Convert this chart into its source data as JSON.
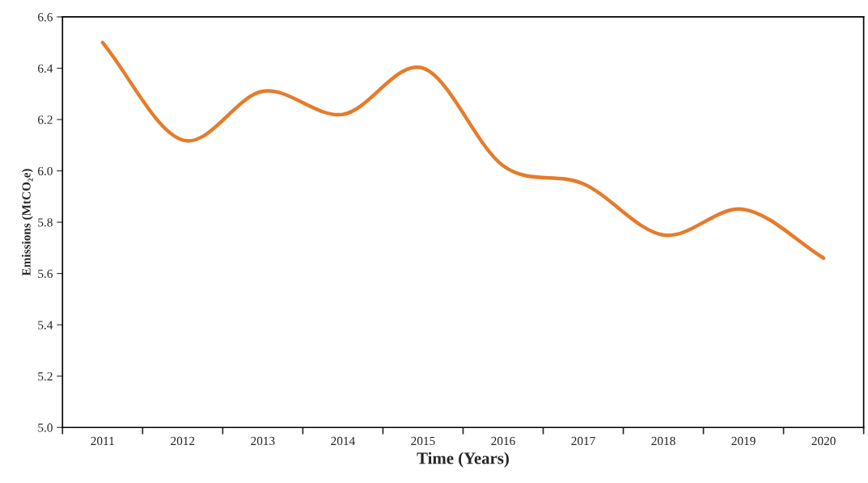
{
  "chart_data": {
    "type": "line",
    "xlabel": "Time (Years)",
    "ylabel": "Emissions (MtCO₂e)",
    "categories": [
      "2011",
      "2012",
      "2013",
      "2014",
      "2015",
      "2016",
      "2017",
      "2018",
      "2019",
      "2020"
    ],
    "series": [
      {
        "color": "#e57c2c",
        "values": [
          6.5,
          6.12,
          6.31,
          6.22,
          6.4,
          6.02,
          5.95,
          5.75,
          5.85,
          5.66
        ]
      }
    ],
    "ylim": [
      5.0,
      6.6
    ],
    "yticks": [
      {
        "value": 5.0,
        "label": "5.0"
      },
      {
        "value": 5.2,
        "label": "5.2"
      },
      {
        "value": 5.4,
        "label": "5.4"
      },
      {
        "value": 5.6,
        "label": "5.6"
      },
      {
        "value": 5.8,
        "label": "5.8"
      },
      {
        "value": 6.0,
        "label": "6.0"
      },
      {
        "value": 6.2,
        "label": "6.2"
      },
      {
        "value": 6.4,
        "label": "6.4"
      },
      {
        "value": 6.6,
        "label": "6.6"
      }
    ],
    "grid": false,
    "legend": false,
    "marker": "none",
    "line_style": "solid"
  }
}
